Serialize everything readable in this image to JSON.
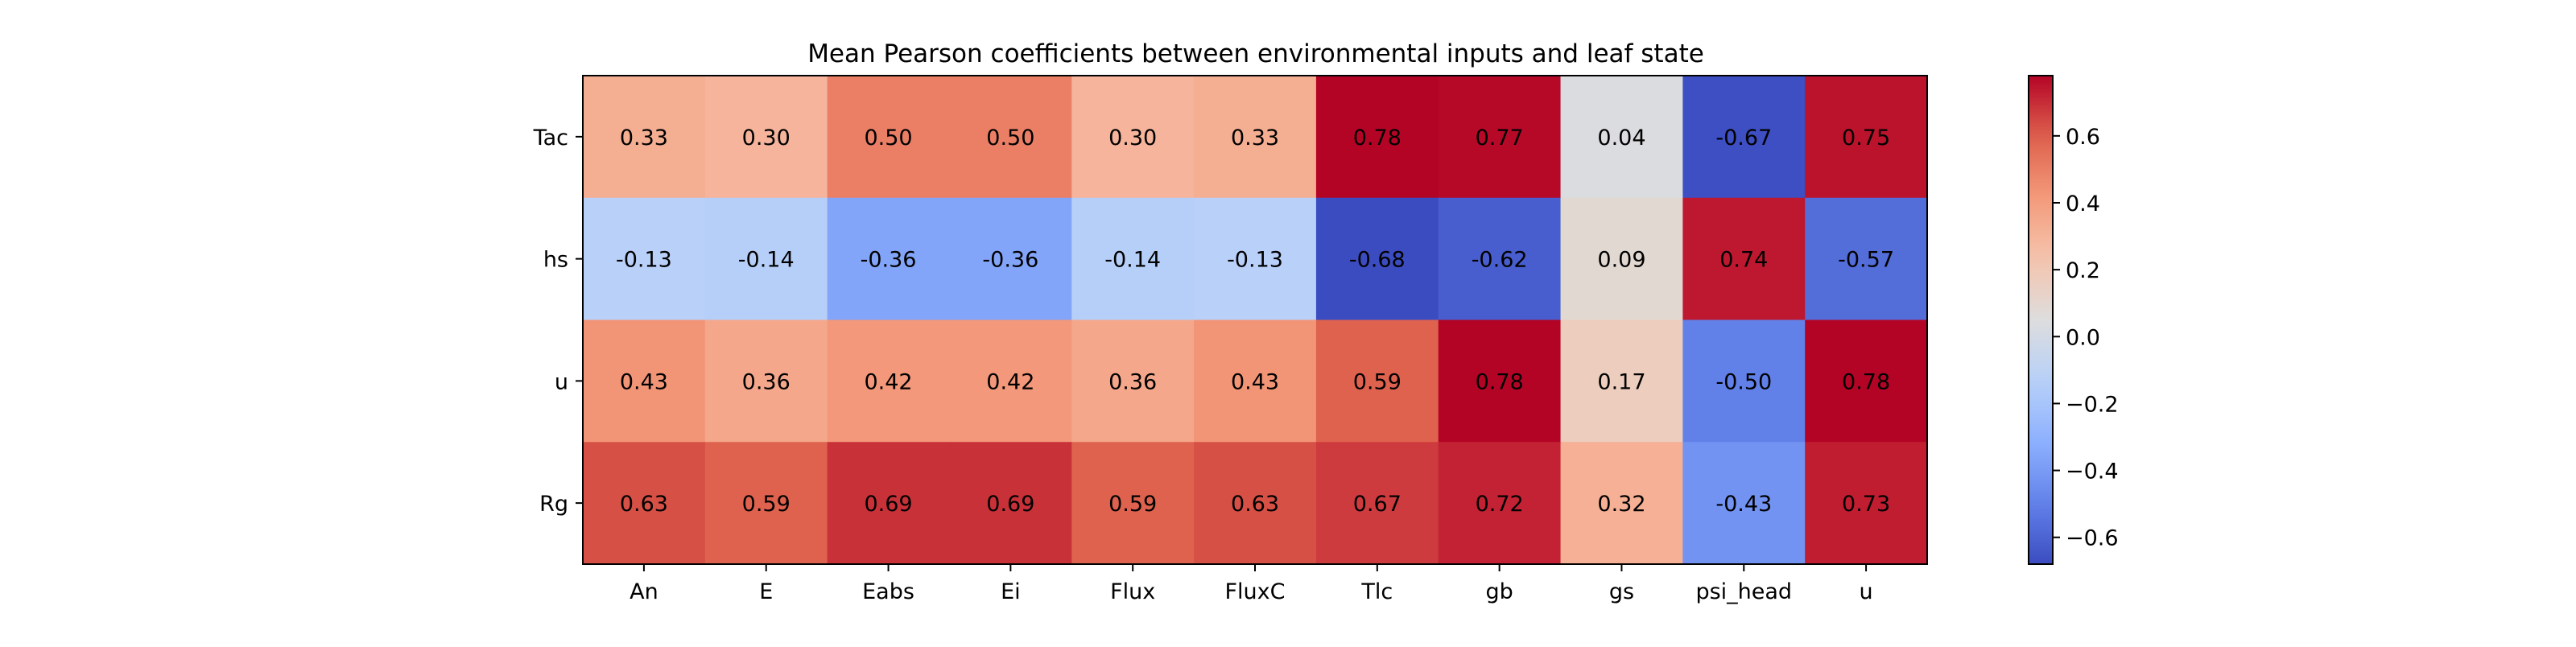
{
  "chart_data": {
    "type": "heatmap",
    "title": "Mean Pearson coefficients between environmental inputs and leaf state",
    "xlabel": "",
    "ylabel": "",
    "x_categories": [
      "An",
      "E",
      "Eabs",
      "Ei",
      "Flux",
      "FluxC",
      "Tlc",
      "gb",
      "gs",
      "psi_head",
      "u"
    ],
    "y_categories": [
      "Tac",
      "hs",
      "u",
      "Rg"
    ],
    "values": [
      [
        0.33,
        0.3,
        0.5,
        0.5,
        0.3,
        0.33,
        0.78,
        0.77,
        0.04,
        -0.67,
        0.75
      ],
      [
        -0.13,
        -0.14,
        -0.36,
        -0.36,
        -0.14,
        -0.13,
        -0.68,
        -0.62,
        0.09,
        0.74,
        -0.57
      ],
      [
        0.43,
        0.36,
        0.42,
        0.42,
        0.36,
        0.43,
        0.59,
        0.78,
        0.17,
        -0.5,
        0.78
      ],
      [
        0.63,
        0.59,
        0.69,
        0.69,
        0.59,
        0.63,
        0.67,
        0.72,
        0.32,
        -0.43,
        0.73
      ]
    ],
    "value_labels": [
      [
        "0.33",
        "0.30",
        "0.50",
        "0.50",
        "0.30",
        "0.33",
        "0.78",
        "0.77",
        "0.04",
        "-0.67",
        "0.75"
      ],
      [
        "-0.13",
        "-0.14",
        "-0.36",
        "-0.36",
        "-0.14",
        "-0.13",
        "-0.68",
        "-0.62",
        "0.09",
        "0.74",
        "-0.57"
      ],
      [
        "0.43",
        "0.36",
        "0.42",
        "0.42",
        "0.36",
        "0.43",
        "0.59",
        "0.78",
        "0.17",
        "-0.50",
        "0.78"
      ],
      [
        "0.63",
        "0.59",
        "0.69",
        "0.69",
        "0.59",
        "0.63",
        "0.67",
        "0.72",
        "0.32",
        "-0.43",
        "0.73"
      ]
    ],
    "colormap": "coolwarm",
    "vmin": -0.68,
    "vmax": 0.78,
    "colorbar": {
      "ticks": [
        -0.6,
        -0.4,
        -0.2,
        0.0,
        0.2,
        0.4,
        0.6
      ],
      "tick_labels": [
        "−0.6",
        "−0.4",
        "−0.2",
        "0.0",
        "0.2",
        "0.4",
        "0.6"
      ],
      "placement": "right"
    },
    "grid": false
  }
}
